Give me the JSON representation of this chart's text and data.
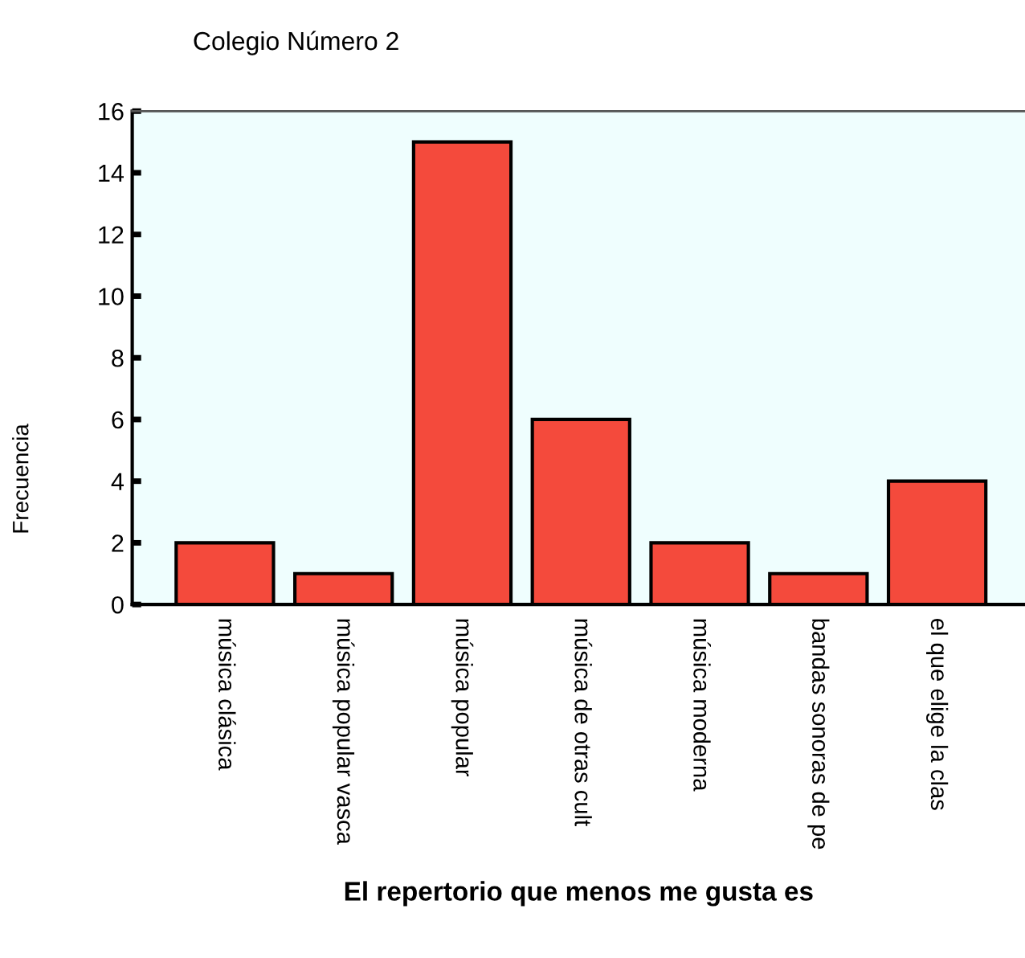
{
  "chart_data": {
    "type": "bar",
    "title": "Colegio Número 2",
    "xlabel": "El repertorio que menos me gusta es",
    "ylabel": "Frecuencia",
    "categories": [
      "música clásica",
      "música popular vasca",
      "música popular",
      "música de otras cult",
      "música moderna",
      "bandas sonoras de pe",
      "el que elige la clas"
    ],
    "values": [
      2,
      1,
      15,
      6,
      2,
      1,
      4
    ],
    "color": "#f44a3c",
    "ylim": [
      0,
      16
    ],
    "yticks": [
      0,
      2,
      4,
      6,
      8,
      10,
      12,
      14,
      16
    ],
    "grid": false,
    "legend": false
  }
}
